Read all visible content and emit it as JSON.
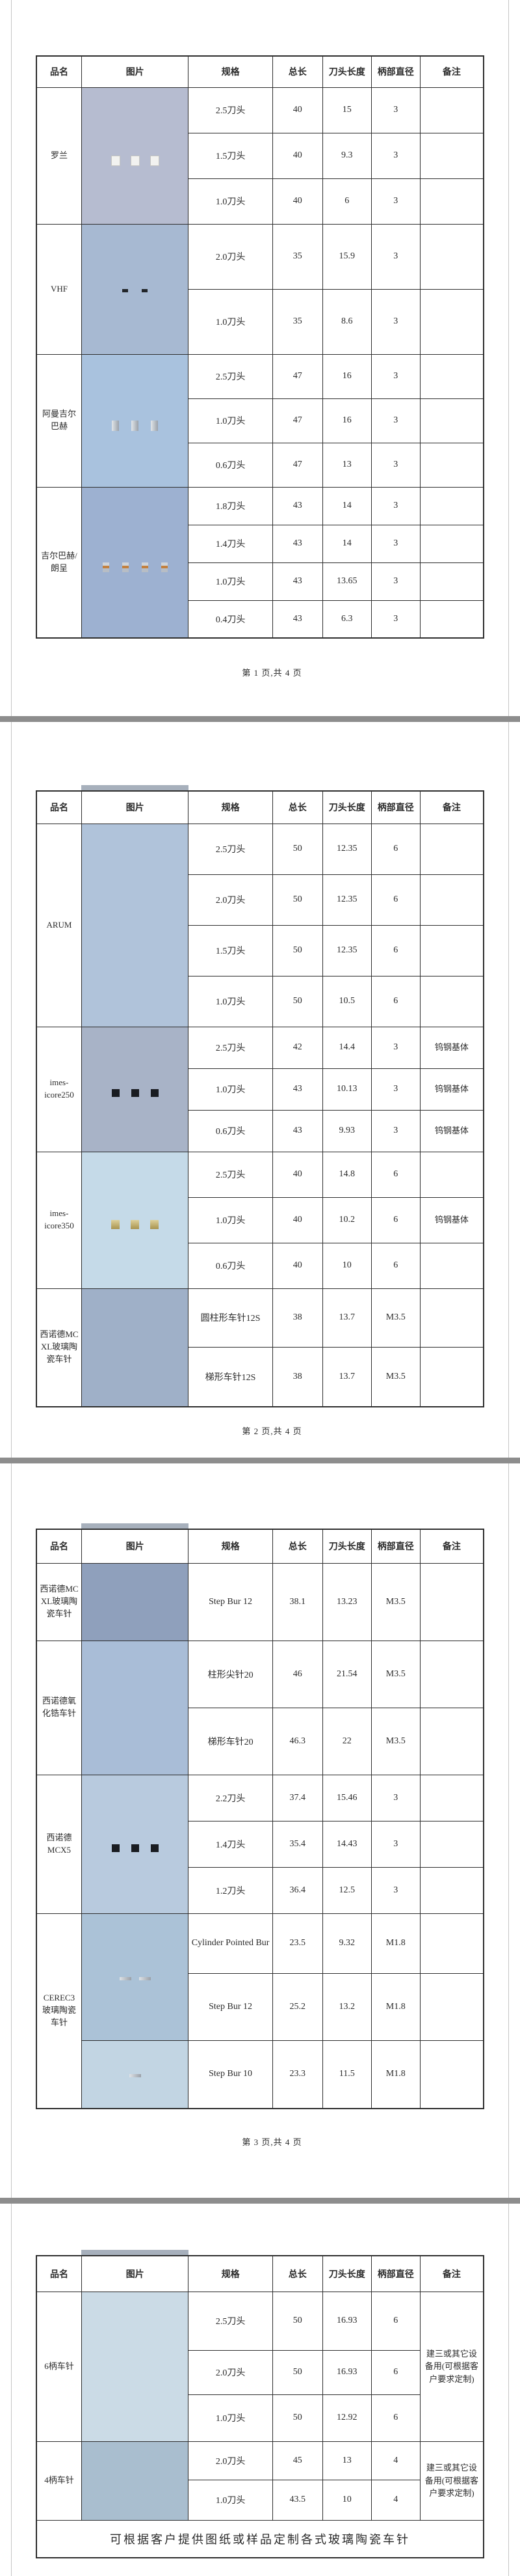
{
  "table_header": [
    "品名",
    "图片",
    "规格",
    "总长",
    "刀头长度",
    "柄部直径",
    "备注"
  ],
  "pages": [
    {
      "footer": "第 1 页,共 4 页",
      "groups": [
        {
          "name": "罗兰",
          "images": [
            {
              "span": 3,
              "pins": 3,
              "bg": "#b6bcd0",
              "style": "collar-white"
            }
          ],
          "rows": [
            {
              "spec": "2.5刀头",
              "total": "40",
              "head": "15",
              "shank": "3",
              "note": ""
            },
            {
              "spec": "1.5刀头",
              "total": "40",
              "head": "9.3",
              "shank": "3",
              "note": ""
            },
            {
              "spec": "1.0刀头",
              "total": "40",
              "head": "6",
              "shank": "3",
              "note": ""
            }
          ]
        },
        {
          "name": "VHF",
          "images": [
            {
              "span": 2,
              "pins": 2,
              "bg": "#a7b9d2",
              "style": "ring-dark tall"
            }
          ],
          "rows": [
            {
              "spec": "2.0刀头",
              "total": "35",
              "head": "15.9",
              "shank": "3",
              "note": ""
            },
            {
              "spec": "1.0刀头",
              "total": "35",
              "head": "8.6",
              "shank": "3",
              "note": ""
            }
          ]
        },
        {
          "name": "阿曼吉尔巴赫",
          "images": [
            {
              "span": 3,
              "pins": 3,
              "bg": "#a9c2de",
              "style": "collar-metal tall"
            }
          ],
          "rows": [
            {
              "spec": "2.5刀头",
              "total": "47",
              "head": "16",
              "shank": "3",
              "note": ""
            },
            {
              "spec": "1.0刀头",
              "total": "47",
              "head": "16",
              "shank": "3",
              "note": ""
            },
            {
              "spec": "0.6刀头",
              "total": "47",
              "head": "13",
              "shank": "3",
              "note": ""
            }
          ]
        },
        {
          "name": "吉尔巴赫/朗呈",
          "images": [
            {
              "span": 4,
              "pins": 4,
              "bg": "#9db1d1",
              "style": "collar-orange tall"
            }
          ],
          "rows": [
            {
              "spec": "1.8刀头",
              "total": "43",
              "head": "14",
              "shank": "3",
              "note": ""
            },
            {
              "spec": "1.4刀头",
              "total": "43",
              "head": "14",
              "shank": "3",
              "note": ""
            },
            {
              "spec": "1.0刀头",
              "total": "43",
              "head": "13.65",
              "shank": "3",
              "note": ""
            },
            {
              "spec": "0.4刀头",
              "total": "43",
              "head": "6.3",
              "shank": "3",
              "note": ""
            }
          ]
        }
      ]
    },
    {
      "footer": "第 2 页,共 4 页",
      "groups": [
        {
          "name": "ARUM",
          "images": [
            {
              "span": 4,
              "pins": 4,
              "bg": "#b0c3da",
              "style": "plain tall"
            }
          ],
          "rows": [
            {
              "spec": "2.5刀头",
              "total": "50",
              "head": "12.35",
              "shank": "6",
              "note": ""
            },
            {
              "spec": "2.0刀头",
              "total": "50",
              "head": "12.35",
              "shank": "6",
              "note": ""
            },
            {
              "spec": "1.5刀头",
              "total": "50",
              "head": "12.35",
              "shank": "6",
              "note": ""
            },
            {
              "spec": "1.0刀头",
              "total": "50",
              "head": "10.5",
              "shank": "6",
              "note": ""
            }
          ]
        },
        {
          "name": "imes-icore250",
          "images": [
            {
              "span": 3,
              "pins": 3,
              "bg": "#a8b3c7",
              "style": "collar-black tall"
            }
          ],
          "rows": [
            {
              "spec": "2.5刀头",
              "total": "42",
              "head": "14.4",
              "shank": "3",
              "note": "钨钢基体"
            },
            {
              "spec": "1.0刀头",
              "total": "43",
              "head": "10.13",
              "shank": "3",
              "note": "钨钢基体"
            },
            {
              "spec": "0.6刀头",
              "total": "43",
              "head": "9.93",
              "shank": "3",
              "note": "钨钢基体"
            }
          ]
        },
        {
          "name": "imes-icore350",
          "images": [
            {
              "span": 3,
              "pins": 3,
              "bg": "#c5dae8",
              "style": "collar-gold"
            }
          ],
          "rows": [
            {
              "spec": "2.5刀头",
              "total": "40",
              "head": "14.8",
              "shank": "6",
              "note": ""
            },
            {
              "spec": "1.0刀头",
              "total": "40",
              "head": "10.2",
              "shank": "6",
              "note": "钨钢基体"
            },
            {
              "spec": "0.6刀头",
              "total": "40",
              "head": "10",
              "shank": "6",
              "note": ""
            }
          ]
        },
        {
          "name": "西诺德MC XL玻璃陶瓷车针",
          "images": [
            {
              "span": 2,
              "pins": 2,
              "bg": "#9fb0c8",
              "style": "taper-dark tall"
            }
          ],
          "rows": [
            {
              "spec": "圆柱形车针12S",
              "total": "38",
              "head": "13.7",
              "shank": "M3.5",
              "note": ""
            },
            {
              "spec": "梯形车针12S",
              "total": "38",
              "head": "13.7",
              "shank": "M3.5",
              "note": ""
            }
          ]
        }
      ]
    },
    {
      "footer": "第 3 页,共 4 页",
      "groups": [
        {
          "name": "西诺德MC XL玻璃陶瓷车针",
          "images": [
            {
              "span": 1,
              "pins": 1,
              "bg": "#8fa0bc",
              "style": "taper-dark tall"
            }
          ],
          "rows": [
            {
              "spec": "Step Bur 12",
              "total": "38.1",
              "head": "13.23",
              "shank": "M3.5",
              "note": ""
            }
          ]
        },
        {
          "name": "西诺德氧化锆车针",
          "images": [
            {
              "span": 2,
              "pins": 2,
              "bg": "#a9bdd7",
              "style": "plain longtip tall"
            }
          ],
          "rows": [
            {
              "spec": "柱形尖针20",
              "total": "46",
              "head": "21.54",
              "shank": "M3.5",
              "note": ""
            },
            {
              "spec": "梯形车针20",
              "total": "46.3",
              "head": "22",
              "shank": "M3.5",
              "note": ""
            }
          ]
        },
        {
          "name": "西诺德MCX5",
          "images": [
            {
              "span": 3,
              "pins": 3,
              "bg": "#b8cade",
              "style": "collar-black tall"
            }
          ],
          "rows": [
            {
              "spec": "2.2刀头",
              "total": "37.4",
              "head": "15.46",
              "shank": "3",
              "note": ""
            },
            {
              "spec": "1.4刀头",
              "total": "35.4",
              "head": "14.43",
              "shank": "3",
              "note": ""
            },
            {
              "spec": "1.2刀头",
              "total": "36.4",
              "head": "12.5",
              "shank": "3",
              "note": ""
            }
          ]
        },
        {
          "name": "CEREC3玻璃陶瓷车针",
          "images": [
            {
              "span": 2,
              "pins": 2,
              "bg": "#abc2d7",
              "style": "flange tall"
            },
            {
              "span": 1,
              "pins": 1,
              "bg": "#c2d5e3",
              "style": "flange"
            }
          ],
          "rows": [
            {
              "spec": "Cylinder Pointed Bur",
              "total": "23.5",
              "head": "9.32",
              "shank": "M1.8",
              "note": ""
            },
            {
              "spec": "Step Bur 12",
              "total": "25.2",
              "head": "13.2",
              "shank": "M1.8",
              "note": ""
            },
            {
              "spec": "Step Bur 10",
              "total": "23.3",
              "head": "11.5",
              "shank": "M1.8",
              "note": ""
            }
          ]
        }
      ]
    },
    {
      "footer": "",
      "merged_note": "可根据客户提供图纸或样品定制各式玻璃陶瓷车针",
      "groups": [
        {
          "name": "6柄车针",
          "remark": "建三或其它设备用(可根据客户要求定制)",
          "images": [
            {
              "span": 3,
              "pins": 3,
              "bg": "#cbdbe6",
              "style": "plain thick tall"
            }
          ],
          "rows": [
            {
              "spec": "2.5刀头",
              "total": "50",
              "head": "16.93",
              "shank": "6"
            },
            {
              "spec": "2.0刀头",
              "total": "50",
              "head": "16.93",
              "shank": "6"
            },
            {
              "spec": "1.0刀头",
              "total": "50",
              "head": "12.92",
              "shank": "6"
            }
          ]
        },
        {
          "name": "4柄车针",
          "remark": "建三或其它设备用(可根据客户要求定制)",
          "images": [
            {
              "span": 2,
              "pins": 2,
              "bg": "#a9becf",
              "style": "plain small"
            }
          ],
          "rows": [
            {
              "spec": "2.0刀头",
              "total": "45",
              "head": "13",
              "shank": "4"
            },
            {
              "spec": "1.0刀头",
              "total": "43.5",
              "head": "10",
              "shank": "4"
            }
          ]
        }
      ]
    }
  ]
}
